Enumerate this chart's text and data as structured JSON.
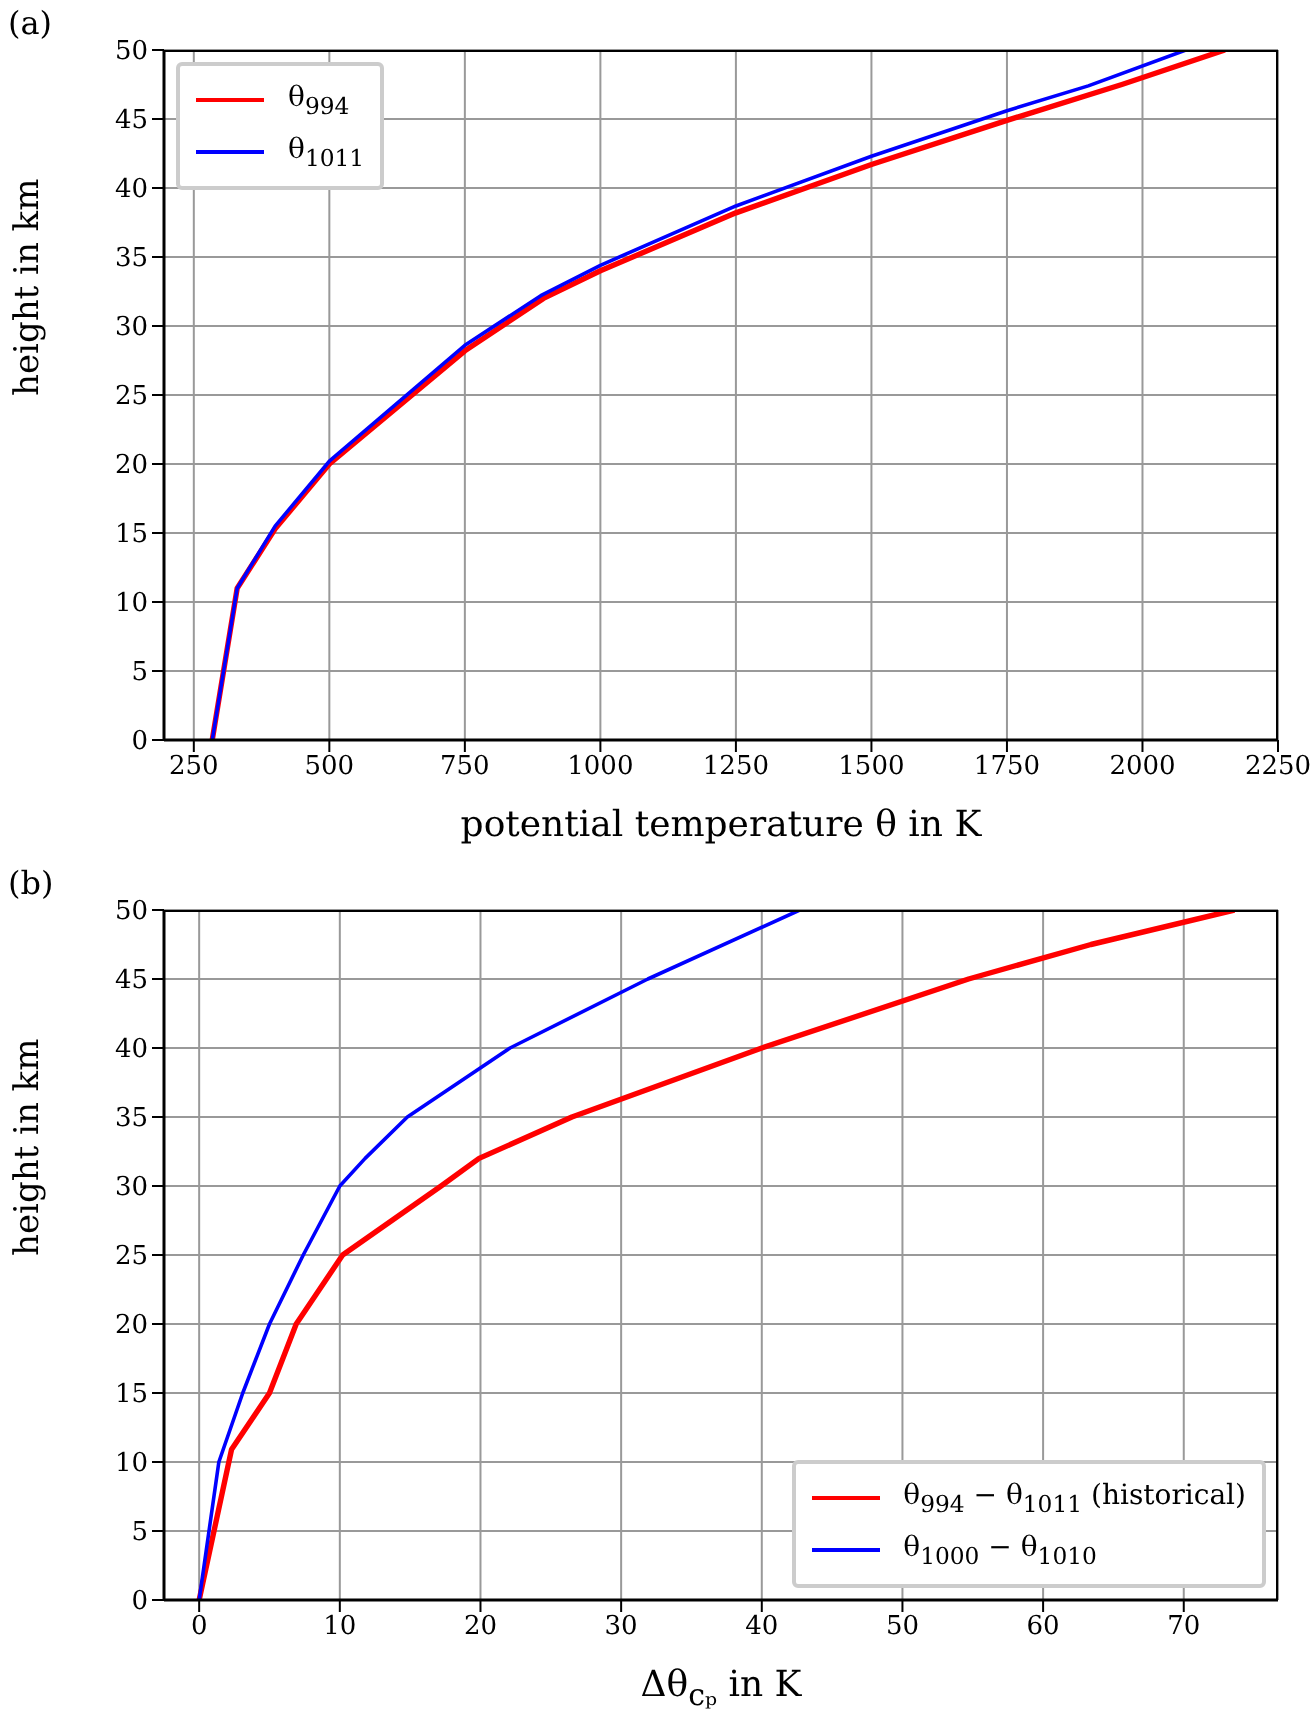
{
  "chart_data": [
    {
      "type": "line",
      "title": "(a)",
      "xlabel": "potential temperature θ in K",
      "ylabel": "height in km",
      "xlim": [
        195,
        2250
      ],
      "xticks": [
        250,
        500,
        750,
        1000,
        1250,
        1500,
        1750,
        2000,
        2250
      ],
      "ylim": [
        0,
        50
      ],
      "yticks": [
        0,
        5,
        10,
        15,
        20,
        25,
        30,
        35,
        40,
        45,
        50
      ],
      "grid": true,
      "legend": "top left",
      "series": [
        {
          "name": "θ$_{994}$",
          "color": "#ff0000",
          "x": [
            284,
            330,
            400,
            500,
            750,
            895,
            1000,
            1250,
            1500,
            1750,
            1962,
            2152
          ],
          "values": [
            0,
            11,
            15.3,
            20,
            28.2,
            32,
            34,
            38.2,
            41.7,
            44.9,
            47.5,
            50
          ]
        },
        {
          "name": "θ$_{1011}$",
          "color": "#0000ff",
          "x": [
            284,
            330,
            400,
            500,
            750,
            890,
            1000,
            1250,
            1500,
            1750,
            1900,
            2080
          ],
          "values": [
            0,
            11,
            15.5,
            20.2,
            28.6,
            32.2,
            34.4,
            38.7,
            42.3,
            45.6,
            47.4,
            50
          ]
        }
      ]
    },
    {
      "type": "line",
      "title": "(b)",
      "xlabel": "Δθ$_{cₚ}$ in K",
      "ylabel": "height in km",
      "xlim": [
        -2.5,
        76.7
      ],
      "xticks": [
        0,
        10,
        20,
        30,
        40,
        50,
        60,
        70
      ],
      "ylim": [
        0,
        50
      ],
      "yticks": [
        0,
        5,
        10,
        15,
        20,
        25,
        30,
        35,
        40,
        45,
        50
      ],
      "grid": true,
      "legend": "bottom right",
      "series": [
        {
          "name": "θ$_{994}$ − θ$_{1011}$ (historical)",
          "color": "#ff0000",
          "x": [
            0,
            2.3,
            5,
            6.9,
            10.2,
            17.2,
            19.9,
            26.5,
            40,
            54.7,
            63.4,
            73.6
          ],
          "values": [
            0,
            10.9,
            15,
            20,
            25,
            30,
            32,
            35,
            40,
            45,
            47.5,
            50
          ]
        },
        {
          "name": "θ$_{1000}$ − θ$_{1010}$",
          "color": "#0000ff",
          "x": [
            0,
            1.4,
            3.1,
            5,
            7.4,
            10,
            11.8,
            14.8,
            22.1,
            31.9,
            42.7
          ],
          "values": [
            0,
            10,
            15,
            20,
            25,
            30,
            32,
            35,
            40,
            45,
            50
          ]
        }
      ]
    }
  ]
}
